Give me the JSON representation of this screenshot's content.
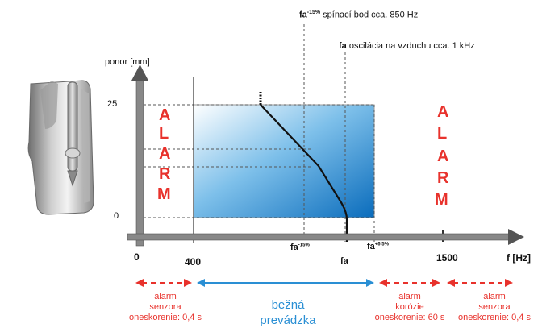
{
  "header": {
    "fa15_prefix": "fa",
    "fa15_sup": "-15%",
    "fa15_text": " spínací bod cca. 850 Hz",
    "fa_prefix": "fa",
    "fa_text": " oscilácia na vzduchu cca. 1 kHz"
  },
  "axes": {
    "y_label": "ponor [mm]",
    "y_ticks": [
      "25",
      "0"
    ],
    "x_label": "f [Hz]",
    "x_ticks": [
      "0",
      "400",
      "1500"
    ],
    "x_marks": {
      "fa15_main": "fa",
      "fa15_sup": "-15%",
      "fa_main": "fa",
      "fa65_main": "fa",
      "fa65_sup": "+6,5%"
    }
  },
  "alarm_left": [
    "A",
    "L",
    "A",
    "R",
    "M"
  ],
  "alarm_right": [
    "A",
    "L",
    "A",
    "R",
    "M"
  ],
  "zones": [
    {
      "line1": "alarm",
      "line2": "senzora",
      "line3": "oneskorenie: 0,4 s"
    },
    {
      "line1": "bežná",
      "line2": "prevádzka"
    },
    {
      "line1": "alarm",
      "line2": "korózie",
      "line3": "oneskorenie: 60 s"
    },
    {
      "line1": "alarm",
      "line2": "senzora",
      "line3": "oneskorenie: 0,4 s"
    }
  ],
  "colors": {
    "alarm_red": "#e8322c",
    "operation_blue": "#2a8fd4",
    "axis_gray": "#777777"
  }
}
